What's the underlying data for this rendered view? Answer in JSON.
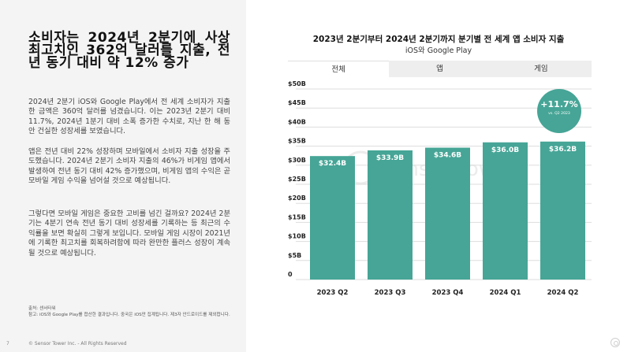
{
  "headline": "소비자는 2024년 2분기에 사상 최고치인 362억 달러를 지출, 전년 동기 대비 약 12% 증가",
  "paragraphs": [
    "2024년 2분기 iOS와 Google Play에서 전 세계 소비자가 지출한 금액은 360억 달러를 넘겼습니다. 이는 2023년 2분기 대비 11.7%, 2024년 1분기 대비 소폭 증가한 수치로, 지난 한 해 동안 건실한 성장세를 보였습니다.",
    "앱은 전년 대비 22% 성장하며 모바일에서 소비자 지출 성장을 주도했습니다. 2024년 2분기 소비자 지출의 46%가 비게임 앱에서 발생하여 전년 동기 대비 42% 증가했으며, 비게임 앱의 수익은 곧 모바일 게임 수익을 넘어설 것으로 예상됩니다.",
    "그렇다면 모바일 게임은 중요한 고비를 넘긴 걸까요? 2024년 2분기는 4분기 연속 전년 동기 대비 성장세를 기록하는 등 최근의 수익률을 보면 확실히 그렇게 보입니다. 모바일 게임 시장이 2021년에 기록한 최고치를 회복하려함에 따라 완만한 플러스 성장이 계속될 것으로 예상됩니다."
  ],
  "footnote": {
    "source": "출처: 센서타워",
    "note": "참고: iOS와 Google Play를 합산한 결과입니다. 중국은 iOS만 집계됩니다. 제3자 안드로이드를 제외합니다."
  },
  "footer": {
    "page_number": "7",
    "copyright": "© Sensor Tower Inc. - All Rights Reserved"
  },
  "tabs": [
    {
      "label": "전체",
      "active": true
    },
    {
      "label": "앱",
      "active": false
    },
    {
      "label": "게임",
      "active": false
    }
  ],
  "badge": {
    "percent": "+11.7%",
    "subtitle": "vs. Q2 2023"
  },
  "watermark": "Sensor Tower",
  "colors": {
    "bar": "#46a596",
    "badge": "#46a596",
    "grid": "#dddddd"
  },
  "chart_data": {
    "type": "bar",
    "title": "2023년 2분기부터 2024년 2분기까지 분기별 전 세계 앱 소비자 지출",
    "subtitle": "iOS와 Google Play",
    "categories": [
      "2023 Q2",
      "2023 Q3",
      "2023 Q4",
      "2024 Q1",
      "2024 Q2"
    ],
    "values": [
      32.4,
      33.9,
      34.6,
      36.0,
      36.2
    ],
    "data_labels": [
      "$32.4B",
      "$33.9B",
      "$34.6B",
      "$36.0B",
      "$36.2B"
    ],
    "y_ticks": [
      0,
      5,
      10,
      15,
      20,
      25,
      30,
      35,
      40,
      45,
      50
    ],
    "y_tick_labels": [
      "0",
      "$5B",
      "$10B",
      "$15B",
      "$20B",
      "$25B",
      "$30B",
      "$35B",
      "$40B",
      "$45B",
      "$50B"
    ],
    "ylim": [
      0,
      50
    ],
    "xlabel": "",
    "ylabel": "",
    "grid": true,
    "legend": "none"
  }
}
